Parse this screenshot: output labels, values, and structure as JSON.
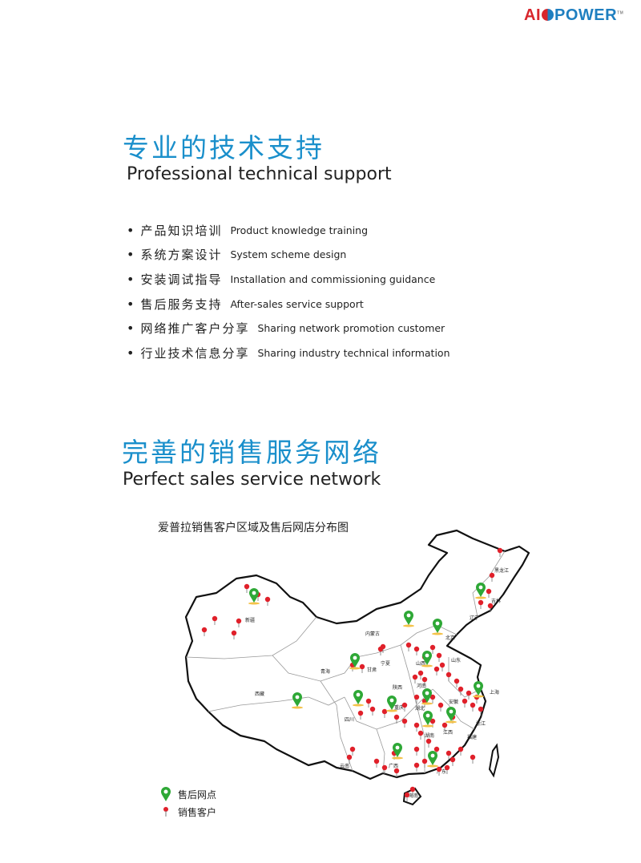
{
  "logo": {
    "brand": "AIOPOWER",
    "part1": "AI",
    "part2": "POWER",
    "tm": "TM"
  },
  "section1": {
    "title_cn": "专业的技术支持",
    "title_en": "Professional technical support",
    "items": [
      {
        "cn": "产品知识培训",
        "en": "Product knowledge training"
      },
      {
        "cn": "系统方案设计",
        "en": "System scheme design"
      },
      {
        "cn": "安装调试指导",
        "en": "Installation and commissioning guidance"
      },
      {
        "cn": "售后服务支持",
        "en": "After-sales service support"
      },
      {
        "cn": "网络推广客户分享",
        "en": "Sharing network promotion customer"
      },
      {
        "cn": "行业技术信息分享",
        "en": "Sharing industry technical information"
      }
    ]
  },
  "section2": {
    "title_cn": "完善的销售服务网络",
    "title_en": "Perfect sales service network",
    "map_title": "爱普拉销售客户区域及售后网店分布图",
    "provinces": [
      "黑龙江",
      "吉林",
      "辽宁",
      "内蒙古",
      "新疆",
      "西藏",
      "青海",
      "甘肃",
      "宁夏",
      "陕西",
      "山西",
      "北京",
      "山东",
      "河南",
      "湖北",
      "安徽",
      "上海",
      "浙江",
      "江西",
      "湖南",
      "福建",
      "广东",
      "广西",
      "四川",
      "重庆",
      "云南",
      "海南"
    ],
    "legend": {
      "service": "售后网点",
      "sales": "销售客户"
    },
    "colors": {
      "service_pin": "#2ea836",
      "sales_pin": "#e0202a",
      "title": "#1a8fcb"
    }
  }
}
